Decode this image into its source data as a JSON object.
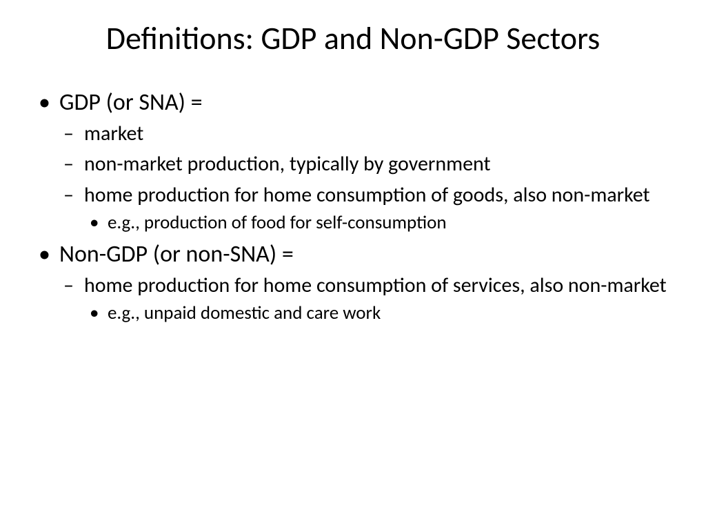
{
  "slide": {
    "title": "Definitions: GDP and Non-GDP Sectors",
    "background_color": "#ffffff",
    "text_color": "#000000",
    "title_fontsize": 46,
    "level1_fontsize": 34,
    "level2_fontsize": 30,
    "level3_fontsize": 27,
    "font_family": "Calibri",
    "bullets": {
      "l1_a": "GDP (or SNA) =",
      "l1_a_children": {
        "l2_a": "market",
        "l2_b": "non-market production, typically by government",
        "l2_c": "home production for home consumption of goods, also non-market",
        "l2_c_children": {
          "l3_a": "e.g., production of food for self-consumption"
        }
      },
      "l1_b": "Non-GDP (or non-SNA) =",
      "l1_b_children": {
        "l2_a": "home production for home consumption of services, also non-market",
        "l2_a_children": {
          "l3_a": "e.g., unpaid domestic and care work"
        }
      }
    }
  }
}
